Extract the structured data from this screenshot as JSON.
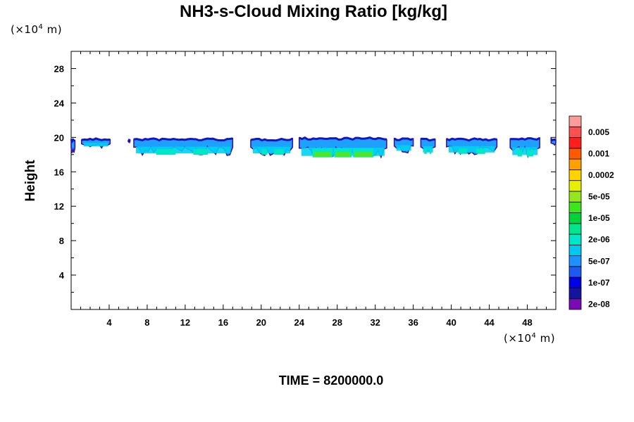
{
  "title": "NH3-s-Cloud Mixing Ratio [kg/kg]",
  "unit_label": {
    "prefix": "(×10",
    "exponent": "4",
    "suffix": " m)"
  },
  "time_label": "TIME = 8200000.0",
  "chart_data": {
    "type": "heatmap",
    "title": "NH3-s-Cloud Mixing Ratio [kg/kg]",
    "xlabel": "",
    "ylabel": "Height",
    "x_unit": "(×10^4 m)",
    "y_unit": "(×10^4 m)",
    "xlim": [
      0,
      51
    ],
    "ylim": [
      0,
      30
    ],
    "x_ticks": [
      4,
      8,
      12,
      16,
      20,
      24,
      28,
      32,
      36,
      40,
      44,
      48
    ],
    "y_ticks": [
      4,
      8,
      12,
      16,
      20,
      24,
      28
    ],
    "grid": false,
    "colorbar": {
      "placement": "right",
      "labels": [
        "2e-08",
        "1e-07",
        "5e-07",
        "2e-06",
        "1e-05",
        "5e-05",
        "0.0002",
        "0.001",
        "0.005"
      ],
      "colors": [
        "#7a0ab4",
        "#1414a0",
        "#0000e6",
        "#1e5af0",
        "#1e90ff",
        "#00c8f0",
        "#00e6c8",
        "#00e68c",
        "#00d23c",
        "#3ce61e",
        "#96e61e",
        "#e6f000",
        "#ffd200",
        "#ffa000",
        "#ff5a00",
        "#ff1e1e",
        "#ff5050",
        "#ff9b9b"
      ]
    },
    "cloud_band": {
      "y_bottom": 18,
      "y_top": 20
    },
    "segments": [
      {
        "x0": 0.0,
        "x1": 0.4,
        "top": 19.7,
        "bot": 17.9,
        "core": 0
      },
      {
        "x0": 1.1,
        "x1": 4.1,
        "top": 19.8,
        "bot": 18.7,
        "core": 0
      },
      {
        "x0": 6.0,
        "x1": 6.2,
        "top": 19.7,
        "bot": 19.4,
        "core": 0
      },
      {
        "x0": 6.6,
        "x1": 17.0,
        "top": 19.8,
        "bot": 17.9,
        "core": 1
      },
      {
        "x0": 18.9,
        "x1": 23.3,
        "top": 19.8,
        "bot": 17.9,
        "core": 1
      },
      {
        "x0": 24.0,
        "x1": 33.2,
        "top": 19.9,
        "bot": 17.6,
        "core": 2
      },
      {
        "x0": 34.0,
        "x1": 36.0,
        "top": 19.8,
        "bot": 18.2,
        "core": 0
      },
      {
        "x0": 36.8,
        "x1": 38.3,
        "top": 19.8,
        "bot": 18.0,
        "core": 1
      },
      {
        "x0": 39.5,
        "x1": 44.8,
        "top": 19.8,
        "bot": 18.0,
        "core": 1
      },
      {
        "x0": 46.2,
        "x1": 49.3,
        "top": 19.9,
        "bot": 17.7,
        "core": 1
      },
      {
        "x0": 50.5,
        "x1": 51.0,
        "top": 19.8,
        "bot": 18.9,
        "core": 0
      }
    ]
  }
}
